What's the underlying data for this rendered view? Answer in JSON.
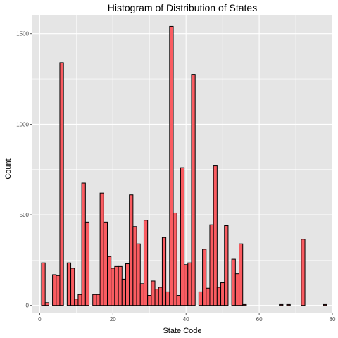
{
  "chart_data": {
    "type": "bar",
    "title": "Histogram of Distribution of States",
    "xlabel": "State Code",
    "ylabel": "Count",
    "xlim": [
      -2,
      80
    ],
    "ylim": [
      -40,
      1600
    ],
    "x_ticks": [
      0,
      20,
      40,
      60,
      80
    ],
    "y_ticks": [
      0,
      500,
      1000,
      1500
    ],
    "bin_width": 1,
    "grid": true,
    "legend": "none",
    "colors": {
      "panel": "#e5e5e5",
      "bar_fill": "#fa5c61",
      "bar_stroke": "#000000",
      "grid": "#ffffff"
    },
    "x": [
      1,
      2,
      4,
      5,
      6,
      8,
      9,
      10,
      11,
      12,
      13,
      15,
      16,
      17,
      18,
      19,
      20,
      21,
      22,
      23,
      24,
      25,
      26,
      27,
      28,
      29,
      30,
      31,
      32,
      33,
      34,
      35,
      36,
      37,
      38,
      39,
      40,
      41,
      42,
      44,
      45,
      46,
      47,
      48,
      49,
      50,
      51,
      53,
      54,
      55,
      56,
      66,
      68,
      72,
      78
    ],
    "values": [
      235,
      15,
      170,
      165,
      1340,
      235,
      205,
      35,
      60,
      675,
      460,
      60,
      60,
      620,
      460,
      270,
      205,
      215,
      215,
      145,
      230,
      610,
      435,
      340,
      120,
      470,
      55,
      135,
      90,
      100,
      375,
      75,
      1540,
      510,
      55,
      760,
      225,
      235,
      1275,
      75,
      310,
      95,
      445,
      770,
      100,
      125,
      440,
      255,
      175,
      340,
      5,
      5,
      5,
      365,
      5
    ]
  }
}
